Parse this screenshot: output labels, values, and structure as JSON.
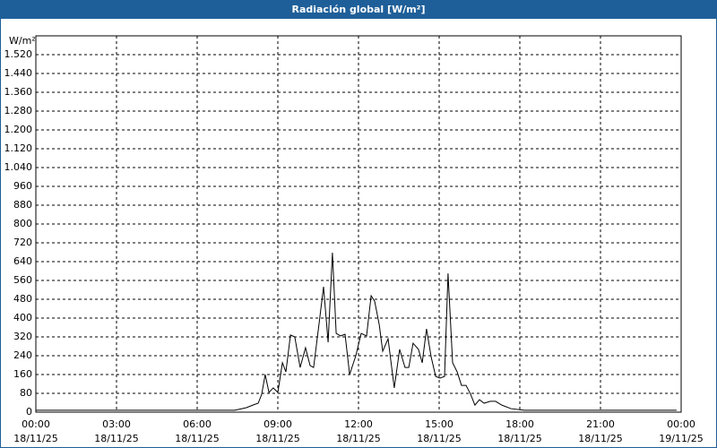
{
  "chart_data": {
    "type": "line",
    "title": "Radiación global [W/m²]",
    "y_label": "W/m²",
    "x": [
      0,
      7.4,
      7.83,
      8.07,
      8.27,
      8.4,
      8.53,
      8.67,
      8.83,
      9.0,
      9.17,
      9.3,
      9.47,
      9.63,
      9.83,
      10.03,
      10.2,
      10.33,
      10.53,
      10.7,
      10.87,
      11.03,
      11.17,
      11.33,
      11.5,
      11.67,
      11.9,
      12.1,
      12.3,
      12.47,
      12.6,
      12.77,
      12.9,
      13.1,
      13.33,
      13.53,
      13.73,
      13.87,
      14.03,
      14.23,
      14.37,
      14.53,
      14.7,
      14.87,
      15.03,
      15.2,
      15.33,
      15.5,
      15.67,
      15.83,
      16.0,
      16.17,
      16.33,
      16.5,
      16.67,
      16.9,
      17.1,
      17.33,
      17.67,
      18.17,
      23.83
    ],
    "series": [
      {
        "color": "#000000",
        "values": [
          8,
          8,
          19,
          30,
          38,
          76,
          160,
          84,
          103,
          84,
          210,
          171,
          328,
          320,
          190,
          274,
          198,
          190,
          373,
          533,
          297,
          678,
          335,
          324,
          331,
          160,
          240,
          335,
          324,
          495,
          472,
          373,
          259,
          312,
          103,
          267,
          190,
          190,
          293,
          267,
          210,
          354,
          236,
          152,
          145,
          152,
          590,
          210,
          171,
          114,
          114,
          76,
          30,
          53,
          38,
          46,
          46,
          30,
          15,
          8,
          8
        ]
      }
    ],
    "xlim": [
      0,
      24
    ],
    "xticks": [
      {
        "value": 0,
        "label": "00:00",
        "date": "18/11/25"
      },
      {
        "value": 3,
        "label": "03:00",
        "date": "18/11/25"
      },
      {
        "value": 6,
        "label": "06:00",
        "date": "18/11/25"
      },
      {
        "value": 9,
        "label": "09:00",
        "date": "18/11/25"
      },
      {
        "value": 12,
        "label": "12:00",
        "date": "18/11/25"
      },
      {
        "value": 15,
        "label": "15:00",
        "date": "18/11/25"
      },
      {
        "value": 18,
        "label": "18:00",
        "date": "18/11/25"
      },
      {
        "value": 21,
        "label": "21:00",
        "date": "18/11/25"
      },
      {
        "value": 24,
        "label": "00:00",
        "date": "19/11/25"
      }
    ],
    "ylim": [
      0,
      1600
    ],
    "yticks": [
      0,
      80,
      160,
      240,
      320,
      400,
      480,
      560,
      640,
      720,
      800,
      880,
      960,
      {
        "value": 1040,
        "label": "1.040"
      },
      {
        "value": 1120,
        "label": "1.120"
      },
      {
        "value": 1200,
        "label": "1.200"
      },
      {
        "value": 1280,
        "label": "1.280"
      },
      {
        "value": 1360,
        "label": "1.360"
      },
      {
        "value": 1440,
        "label": "1.440"
      },
      {
        "value": 1520,
        "label": "1.520"
      }
    ],
    "grid": true
  }
}
